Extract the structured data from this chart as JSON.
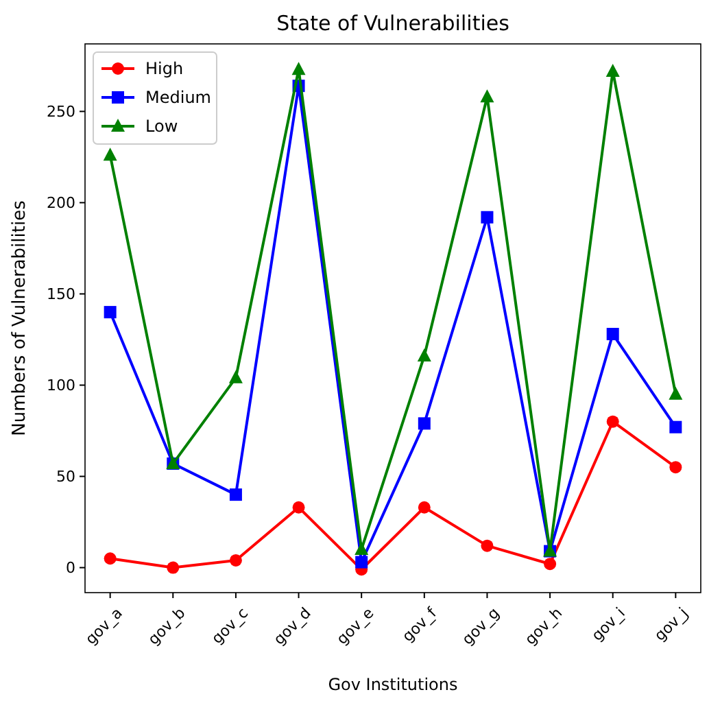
{
  "chart_data": {
    "type": "line",
    "title": "State of Vulnerabilities",
    "xlabel": "Gov Institutions",
    "ylabel": "Numbers of Vulnerabilities",
    "categories": [
      "gov_a",
      "gov_b",
      "gov_c",
      "gov_d",
      "gov_e",
      "gov_f",
      "gov_g",
      "gov_h",
      "gov_i",
      "gov_j"
    ],
    "series": [
      {
        "name": "High",
        "color": "#ff0000",
        "marker": "circle",
        "values": [
          5,
          0,
          4,
          33,
          -1,
          33,
          12,
          2,
          80,
          55
        ]
      },
      {
        "name": "Medium",
        "color": "#0000ff",
        "marker": "square",
        "values": [
          140,
          57,
          40,
          264,
          3,
          79,
          192,
          9,
          128,
          77
        ]
      },
      {
        "name": "Low",
        "color": "#008000",
        "marker": "triangle",
        "values": [
          226,
          57,
          104,
          273,
          10,
          116,
          258,
          9,
          272,
          95
        ]
      }
    ],
    "ylim": [
      -13.7,
      287
    ],
    "yticks": [
      0,
      50,
      100,
      150,
      200,
      250
    ],
    "grid": false,
    "legend": "top left",
    "line_style": "solid"
  }
}
